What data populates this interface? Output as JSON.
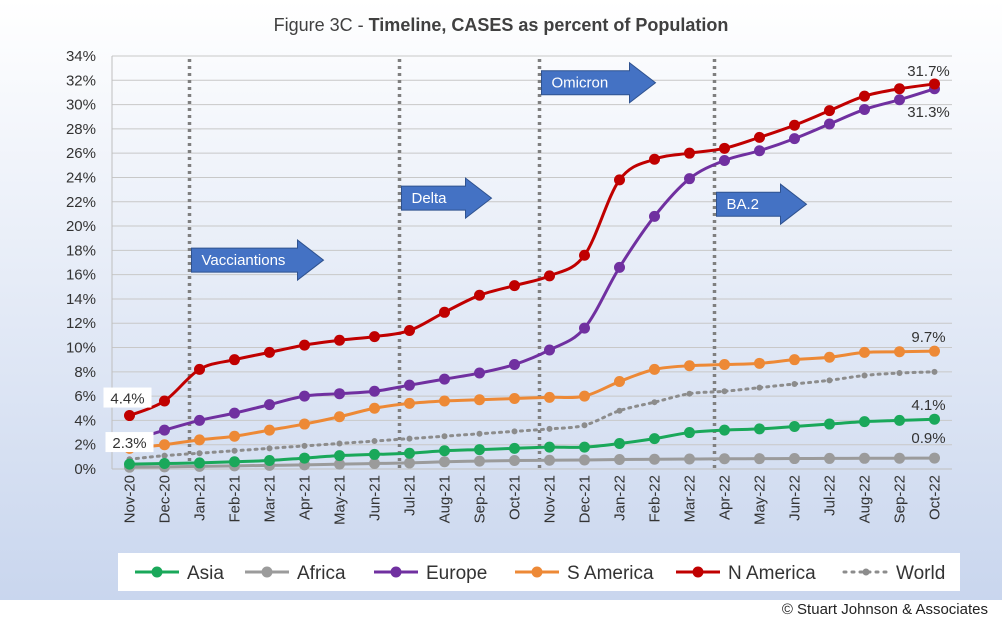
{
  "chart_data": {
    "type": "line",
    "title_prefix": "Figure 3C - ",
    "title_bold": "Timeline, CASES as percent of Population",
    "categories": [
      "Nov-20",
      "Dec-20",
      "Jan-21",
      "Feb-21",
      "Mar-21",
      "Apr-21",
      "May-21",
      "Jun-21",
      "Jul-21",
      "Aug-21",
      "Sep-21",
      "Oct-21",
      "Nov-21",
      "Dec-21",
      "Jan-22",
      "Feb-22",
      "Mar-22",
      "Apr-22",
      "May-22",
      "Jun-22",
      "Jul-22",
      "Aug-22",
      "Sep-22",
      "Oct-22"
    ],
    "ylim": [
      0,
      34
    ],
    "yticks": [
      "0%",
      "2%",
      "4%",
      "6%",
      "8%",
      "10%",
      "12%",
      "14%",
      "16%",
      "18%",
      "20%",
      "22%",
      "24%",
      "26%",
      "28%",
      "30%",
      "32%",
      "34%"
    ],
    "grid": true,
    "legend_position": "bottom",
    "series": [
      {
        "name": "Asia",
        "color": "#1aa85a",
        "style": "solid",
        "values": [
          0.4,
          0.45,
          0.5,
          0.6,
          0.7,
          0.9,
          1.1,
          1.2,
          1.3,
          1.5,
          1.6,
          1.7,
          1.8,
          1.8,
          2.1,
          2.5,
          3.0,
          3.2,
          3.3,
          3.5,
          3.7,
          3.9,
          4.0,
          4.1
        ]
      },
      {
        "name": "Africa",
        "color": "#9b9b9b",
        "style": "solid",
        "values": [
          0.15,
          0.18,
          0.22,
          0.26,
          0.3,
          0.34,
          0.4,
          0.45,
          0.5,
          0.6,
          0.65,
          0.7,
          0.72,
          0.74,
          0.78,
          0.8,
          0.82,
          0.84,
          0.85,
          0.86,
          0.87,
          0.88,
          0.89,
          0.9
        ]
      },
      {
        "name": "Europe",
        "color": "#7030a0",
        "style": "solid",
        "values": [
          2.3,
          3.2,
          4.0,
          4.6,
          5.3,
          6.0,
          6.2,
          6.4,
          6.9,
          7.4,
          7.9,
          8.6,
          9.8,
          11.6,
          16.6,
          20.8,
          23.9,
          25.4,
          26.2,
          27.2,
          28.4,
          29.6,
          30.4,
          31.3
        ]
      },
      {
        "name": "S America",
        "color": "#ed8936",
        "style": "solid",
        "values": [
          1.7,
          2.0,
          2.4,
          2.7,
          3.2,
          3.7,
          4.3,
          5.0,
          5.4,
          5.6,
          5.7,
          5.8,
          5.9,
          6.0,
          7.2,
          8.2,
          8.5,
          8.6,
          8.7,
          9.0,
          9.2,
          9.6,
          9.65,
          9.7
        ]
      },
      {
        "name": "N America",
        "color": "#c00000",
        "style": "solid",
        "values": [
          4.4,
          5.6,
          8.2,
          9.0,
          9.6,
          10.2,
          10.6,
          10.9,
          11.4,
          12.9,
          14.3,
          15.1,
          15.9,
          17.6,
          23.8,
          25.5,
          26.0,
          26.4,
          27.3,
          28.3,
          29.5,
          30.7,
          31.3,
          31.7
        ]
      },
      {
        "name": "World",
        "color": "#8c8c8c",
        "style": "dotted",
        "values": [
          0.8,
          1.1,
          1.3,
          1.5,
          1.7,
          1.9,
          2.1,
          2.3,
          2.5,
          2.7,
          2.9,
          3.1,
          3.3,
          3.6,
          4.8,
          5.5,
          6.2,
          6.4,
          6.7,
          7.0,
          7.3,
          7.7,
          7.9,
          8.0
        ]
      }
    ],
    "data_labels": [
      {
        "text": "31.7%",
        "series": "N America",
        "index": 23
      },
      {
        "text": "31.3%",
        "series": "Europe",
        "index": 23
      },
      {
        "text": "9.7%",
        "series": "S America",
        "index": 23
      },
      {
        "text": "4.1%",
        "series": "Asia",
        "index": 23
      },
      {
        "text": "0.9%",
        "series": "Africa",
        "index": 23
      },
      {
        "text": "4.4%",
        "series": "N America",
        "index": 0
      },
      {
        "text": "2.3%",
        "series": "Europe",
        "index": 0
      }
    ],
    "annotations": [
      {
        "text": "Vacciantions",
        "at_index": 2,
        "y_value": 17.2
      },
      {
        "text": "Delta",
        "at_index": 8,
        "y_value": 22.3
      },
      {
        "text": "Omicron",
        "at_index": 12,
        "y_value": 31.8
      },
      {
        "text": "BA.2",
        "at_index": 17,
        "y_value": 21.8
      }
    ],
    "arrow_color": "#4472c4"
  },
  "copyright": "© Stuart Johnson & Associates"
}
